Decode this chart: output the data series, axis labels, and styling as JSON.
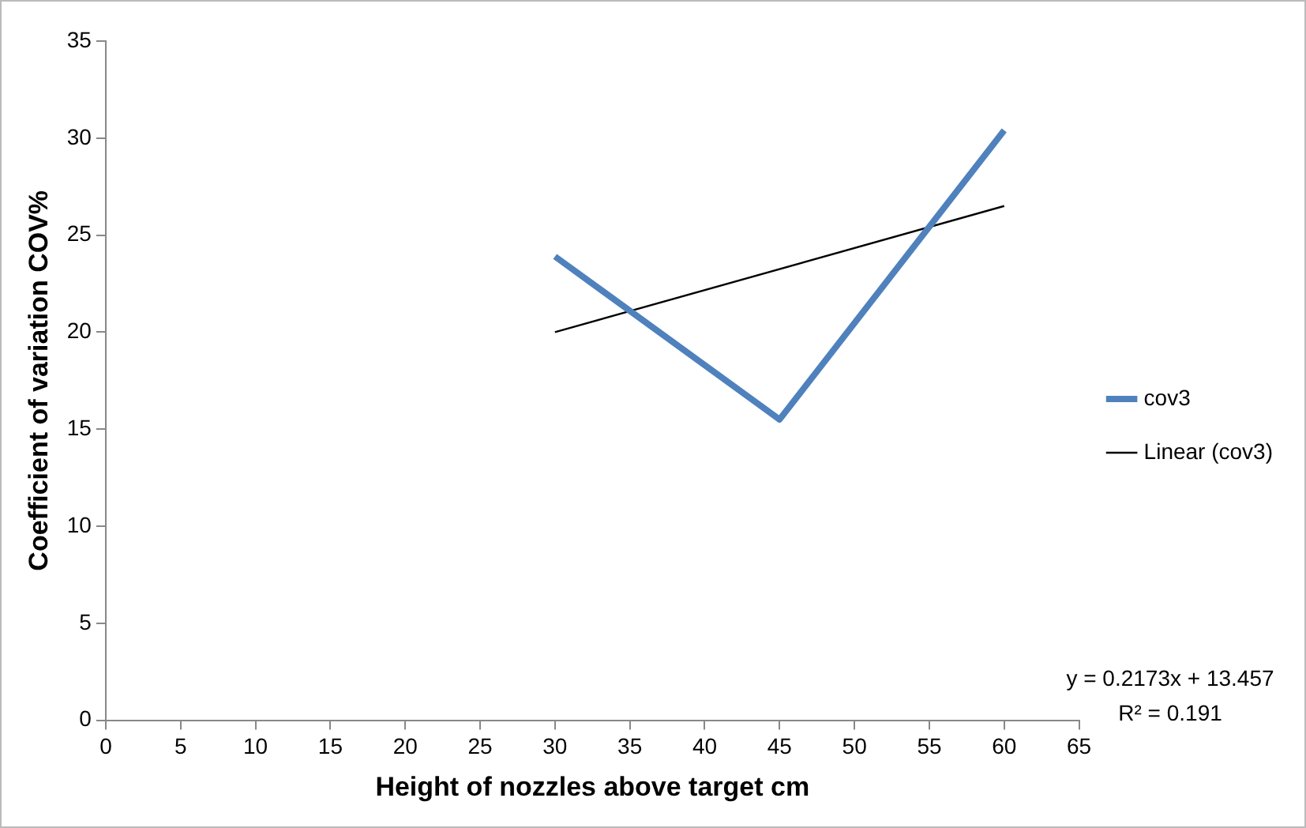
{
  "chart_data": {
    "type": "line",
    "xlabel": "Height of nozzles above target cm",
    "ylabel": "Coefficient of variation COV%",
    "xlim": [
      0,
      65
    ],
    "xticks": [
      0,
      5,
      10,
      15,
      20,
      25,
      30,
      35,
      40,
      45,
      50,
      55,
      60,
      65
    ],
    "ylim": [
      0,
      35
    ],
    "yticks": [
      0,
      5,
      10,
      15,
      20,
      25,
      30,
      35
    ],
    "series": [
      {
        "name": "cov3",
        "color": "#4f81bd",
        "x": [
          30,
          45,
          60
        ],
        "values": [
          23.9,
          15.5,
          30.4
        ]
      },
      {
        "name": "Linear (cov3)",
        "color": "#000000",
        "x": [
          30,
          60
        ],
        "values": [
          20.0,
          26.5
        ]
      }
    ],
    "legend": "right",
    "grid": false,
    "annotations": [
      "y = 0.2173x + 13.457",
      "R² = 0.191"
    ]
  }
}
